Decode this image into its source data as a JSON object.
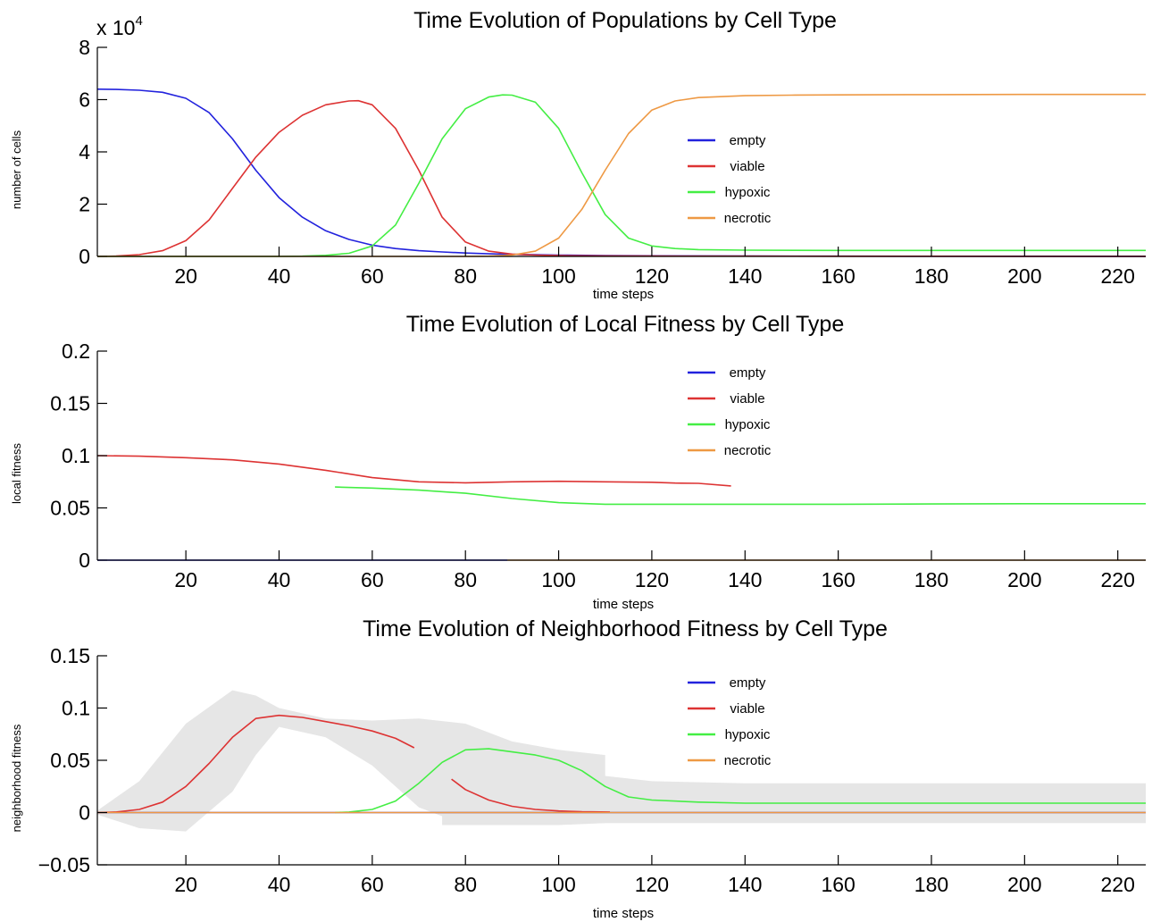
{
  "chart_data": [
    {
      "type": "line",
      "title": "Time Evolution of Populations by Cell Type",
      "xlabel": "time steps",
      "ylabel": "number of cells",
      "y_multiplier_base": "x 10",
      "y_multiplier_exp": "4",
      "xlim": [
        1,
        226
      ],
      "ylim": [
        0,
        80000
      ],
      "xticks": [
        20,
        40,
        60,
        80,
        100,
        120,
        140,
        160,
        180,
        200,
        220
      ],
      "yticks": [
        0,
        20000,
        40000,
        60000,
        80000
      ],
      "ytick_labels": [
        "0",
        "2",
        "4",
        "6",
        "8"
      ],
      "grid": false,
      "legend_position": "center-right",
      "legend": [
        "empty",
        "viable",
        "hypoxic",
        "necrotic"
      ],
      "series": [
        {
          "name": "empty",
          "color": "#2222dd",
          "x": [
            1,
            5,
            10,
            15,
            20,
            25,
            30,
            35,
            40,
            45,
            50,
            55,
            60,
            65,
            70,
            75,
            80,
            85,
            90,
            95,
            100,
            110,
            120,
            140,
            160,
            180,
            200,
            220,
            226
          ],
          "y": [
            64000,
            63900,
            63600,
            62800,
            60500,
            55000,
            45000,
            33000,
            22500,
            15000,
            9800,
            6500,
            4300,
            3000,
            2200,
            1700,
            1300,
            1000,
            800,
            650,
            500,
            350,
            250,
            150,
            100,
            80,
            60,
            50,
            50
          ]
        },
        {
          "name": "viable",
          "color": "#dd3333",
          "x": [
            1,
            5,
            10,
            15,
            20,
            25,
            30,
            35,
            40,
            45,
            50,
            55,
            57,
            60,
            65,
            70,
            75,
            80,
            85,
            90,
            95,
            100,
            110,
            120,
            140,
            160,
            180,
            200,
            220,
            226
          ],
          "y": [
            0,
            150,
            700,
            2200,
            6000,
            14000,
            26000,
            38000,
            47500,
            54000,
            58000,
            59500,
            59600,
            58000,
            49000,
            33000,
            15000,
            5500,
            2000,
            900,
            500,
            300,
            200,
            150,
            100,
            80,
            60,
            50,
            50,
            50
          ]
        },
        {
          "name": "hypoxic",
          "color": "#44ee44",
          "x": [
            1,
            40,
            45,
            50,
            55,
            60,
            65,
            70,
            75,
            80,
            85,
            88,
            90,
            95,
            100,
            105,
            110,
            115,
            120,
            125,
            130,
            140,
            160,
            180,
            200,
            220,
            226
          ],
          "y": [
            0,
            0,
            100,
            400,
            1200,
            4000,
            12000,
            28000,
            45000,
            56500,
            61000,
            61800,
            61700,
            59000,
            49000,
            32000,
            16000,
            7000,
            4000,
            3000,
            2600,
            2400,
            2300,
            2300,
            2300,
            2300,
            2300
          ]
        },
        {
          "name": "necrotic",
          "color": "#ee9944",
          "x": [
            1,
            80,
            85,
            90,
            95,
            100,
            105,
            110,
            115,
            120,
            125,
            130,
            140,
            150,
            160,
            180,
            200,
            220,
            226
          ],
          "y": [
            0,
            0,
            100,
            500,
            2000,
            7000,
            18000,
            33000,
            47000,
            56000,
            59500,
            60800,
            61500,
            61700,
            61800,
            61900,
            62000,
            62000,
            62000
          ]
        }
      ]
    },
    {
      "type": "line",
      "title": "Time Evolution of Local Fitness by Cell Type",
      "xlabel": "time steps",
      "ylabel": "local fitness",
      "xlim": [
        1,
        226
      ],
      "ylim": [
        0,
        0.2
      ],
      "xticks": [
        20,
        40,
        60,
        80,
        100,
        120,
        140,
        160,
        180,
        200,
        220
      ],
      "yticks": [
        0,
        0.05,
        0.1,
        0.15,
        0.2
      ],
      "ytick_labels": [
        "0",
        "0.05",
        "0.1",
        "0.15",
        "0.2"
      ],
      "grid": false,
      "legend_position": "top-right",
      "legend": [
        "empty",
        "viable",
        "hypoxic",
        "necrotic"
      ],
      "series": [
        {
          "name": "empty",
          "color": "#2222dd",
          "x": [
            1,
            89
          ],
          "y": [
            0,
            0
          ]
        },
        {
          "name": "viable",
          "color": "#dd3333",
          "x": [
            1,
            10,
            20,
            30,
            40,
            50,
            60,
            70,
            80,
            90,
            100,
            110,
            120,
            125,
            130,
            137
          ],
          "y": [
            0.1,
            0.0995,
            0.098,
            0.096,
            0.092,
            0.086,
            0.079,
            0.075,
            0.074,
            0.075,
            0.0755,
            0.075,
            0.0745,
            0.0738,
            0.0735,
            0.071
          ]
        },
        {
          "name": "hypoxic",
          "color": "#44ee44",
          "x": [
            52,
            60,
            70,
            80,
            90,
            100,
            110,
            120,
            140,
            160,
            180,
            200,
            220,
            226
          ],
          "y": [
            0.07,
            0.069,
            0.067,
            0.064,
            0.059,
            0.055,
            0.0535,
            0.0535,
            0.0535,
            0.0535,
            0.0538,
            0.054,
            0.054,
            0.054
          ]
        },
        {
          "name": "necrotic",
          "color": "#ee9944",
          "x": [
            89,
            226
          ],
          "y": [
            0,
            0
          ]
        }
      ]
    },
    {
      "type": "line",
      "title": "Time Evolution of Neighborhood Fitness by Cell Type",
      "xlabel": "time steps",
      "ylabel": "neighborhood fitness",
      "xlim": [
        1,
        226
      ],
      "ylim": [
        -0.05,
        0.15
      ],
      "xticks": [
        20,
        40,
        60,
        80,
        100,
        120,
        140,
        160,
        180,
        200,
        220
      ],
      "yticks": [
        -0.05,
        0,
        0.05,
        0.1,
        0.15
      ],
      "ytick_labels": [
        "−0.05",
        "0",
        "0.05",
        "0.1",
        "0.15"
      ],
      "grid": false,
      "legend_position": "top-right",
      "legend": [
        "empty",
        "viable",
        "hypoxic",
        "necrotic"
      ],
      "bands": [
        {
          "color": "#e6e6e6",
          "x": [
            1,
            10,
            20,
            30,
            35,
            40,
            50,
            60,
            70,
            80,
            90,
            100,
            110,
            120,
            140,
            160,
            200,
            226
          ],
          "upper": [
            0.002,
            0.03,
            0.085,
            0.117,
            0.112,
            0.1,
            0.09,
            0.088,
            0.09,
            0.085,
            0.068,
            0.06,
            0.035,
            0.03,
            0.028,
            0.028,
            0.028,
            0.028
          ],
          "lower": [
            -0.002,
            -0.015,
            -0.018,
            0.02,
            0.055,
            0.082,
            0.072,
            0.045,
            0.005,
            -0.012,
            -0.012,
            -0.01,
            -0.01,
            -0.01,
            -0.01,
            -0.01,
            -0.01,
            -0.01
          ]
        },
        {
          "color": "#e6e6e6",
          "x": [
            75,
            80,
            85,
            90,
            100,
            110
          ],
          "upper": [
            0.035,
            0.04,
            0.045,
            0.05,
            0.06,
            0.055
          ],
          "lower": [
            -0.012,
            -0.012,
            -0.01,
            -0.012,
            -0.012,
            -0.01
          ]
        }
      ],
      "series": [
        {
          "name": "empty",
          "color": "#2222dd",
          "x": [
            1,
            226
          ],
          "y": [
            0,
            0
          ]
        },
        {
          "name": "viable",
          "color": "#dd3333",
          "x": [
            1,
            5,
            10,
            15,
            20,
            25,
            30,
            35,
            40,
            45,
            50,
            55,
            60,
            65,
            69
          ],
          "y": [
            0,
            0.0005,
            0.003,
            0.01,
            0.025,
            0.047,
            0.072,
            0.09,
            0.093,
            0.091,
            0.087,
            0.083,
            0.078,
            0.071,
            0.062
          ]
        },
        {
          "name": "viable",
          "color": "#dd3333",
          "x": [
            77,
            80,
            85,
            90,
            95,
            100,
            105,
            111
          ],
          "y": [
            0.032,
            0.022,
            0.012,
            0.006,
            0.003,
            0.0015,
            0.0008,
            0.0005
          ]
        },
        {
          "name": "hypoxic",
          "color": "#44ee44",
          "x": [
            52,
            55,
            60,
            65,
            70,
            75,
            80,
            85,
            90,
            95,
            100,
            105,
            110,
            115,
            120,
            130,
            140,
            160,
            180,
            200,
            220,
            226
          ],
          "y": [
            0,
            0.0005,
            0.003,
            0.011,
            0.028,
            0.048,
            0.06,
            0.061,
            0.058,
            0.055,
            0.05,
            0.04,
            0.025,
            0.015,
            0.012,
            0.01,
            0.009,
            0.009,
            0.009,
            0.009,
            0.009,
            0.009
          ]
        },
        {
          "name": "necrotic",
          "color": "#ee9944",
          "x": [
            1,
            226
          ],
          "y": [
            0,
            0
          ]
        }
      ]
    }
  ]
}
